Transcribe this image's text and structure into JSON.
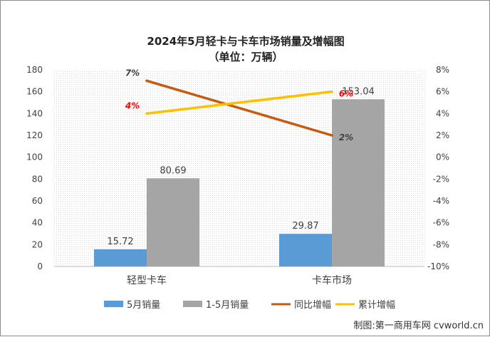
{
  "chart_data": {
    "type": "bar",
    "title": "2024年5月轻卡与卡车市场销量及增幅图",
    "subtitle": "（单位：万辆）",
    "categories": [
      "轻型卡车",
      "卡车市场"
    ],
    "bar_series": [
      {
        "name": "5月销量",
        "values": [
          15.72,
          29.87
        ],
        "labels": [
          "15.72",
          "29.87"
        ],
        "color": "#5b9bd5"
      },
      {
        "name": "1-5月销量",
        "values": [
          80.69,
          153.04
        ],
        "labels": [
          "80.69",
          "153.04"
        ],
        "color": "#a5a5a5"
      }
    ],
    "line_series": [
      {
        "name": "同比增幅",
        "values": [
          7,
          2
        ],
        "labels": [
          "7%",
          "2%"
        ],
        "color": "#c55a11",
        "label_color": "#404040"
      },
      {
        "name": "累计增幅",
        "values": [
          4,
          6
        ],
        "labels": [
          "4%",
          "6%"
        ],
        "color": "#ffc000",
        "label_color": "#ff0000"
      }
    ],
    "y_left": {
      "min": 0,
      "max": 180,
      "step": 20,
      "ticks": [
        "0",
        "20",
        "40",
        "60",
        "80",
        "100",
        "120",
        "140",
        "160",
        "180"
      ]
    },
    "y_right": {
      "min": -10,
      "max": 8,
      "step": 2,
      "ticks": [
        "-10%",
        "-8%",
        "-6%",
        "-4%",
        "-2%",
        "0%",
        "2%",
        "4%",
        "6%",
        "8%"
      ]
    },
    "legend_position": "bottom",
    "plot_background": "dotted"
  },
  "watermark": "制图:第一商用车网 cvworld.cn"
}
